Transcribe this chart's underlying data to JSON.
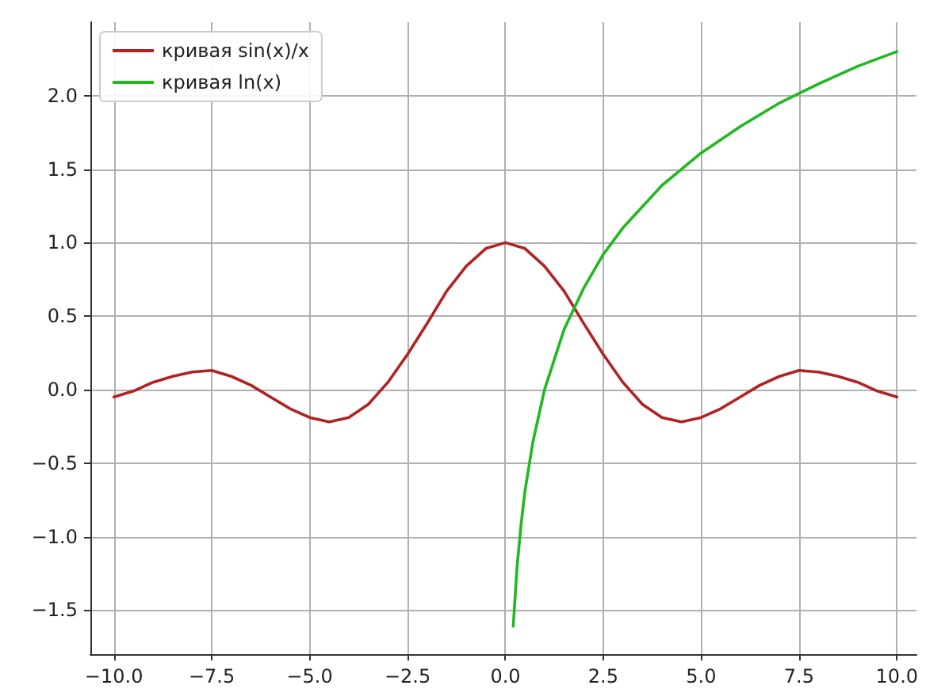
{
  "chart_data": {
    "type": "line",
    "series": [
      {
        "name": "кривая sin(x)/x",
        "color": "#b22222",
        "x": [
          -10,
          -9.5,
          -9,
          -8.5,
          -8,
          -7.5,
          -7,
          -6.5,
          -6,
          -5.5,
          -5,
          -4.5,
          -4,
          -3.5,
          -3,
          -2.5,
          -2,
          -1.5,
          -1,
          -0.5,
          0,
          0.5,
          1,
          1.5,
          2,
          2.5,
          3,
          3.5,
          4,
          4.5,
          5,
          5.5,
          6,
          6.5,
          7,
          7.5,
          8,
          8.5,
          9,
          9.5,
          10
        ],
        "values": [
          -0.05,
          -0.01,
          0.05,
          0.09,
          0.12,
          0.13,
          0.09,
          0.03,
          -0.05,
          -0.13,
          -0.19,
          -0.22,
          -0.19,
          -0.1,
          0.05,
          0.24,
          0.45,
          0.67,
          0.84,
          0.96,
          1.0,
          0.96,
          0.84,
          0.67,
          0.45,
          0.24,
          0.05,
          -0.1,
          -0.19,
          -0.22,
          -0.19,
          -0.13,
          -0.05,
          0.03,
          0.09,
          0.13,
          0.12,
          0.09,
          0.05,
          -0.01,
          -0.05
        ]
      },
      {
        "name": "кривая ln(x)",
        "color": "#22b822",
        "x": [
          0.2,
          0.3,
          0.4,
          0.5,
          0.7,
          1,
          1.5,
          2,
          2.5,
          3,
          4,
          5,
          6,
          7,
          8,
          9,
          10
        ],
        "values": [
          -1.61,
          -1.2,
          -0.92,
          -0.69,
          -0.36,
          0,
          0.41,
          0.69,
          0.92,
          1.1,
          1.39,
          1.61,
          1.79,
          1.95,
          2.08,
          2.2,
          2.3
        ]
      }
    ],
    "xlim": [
      -10.6,
      10.5
    ],
    "xticks": [
      {
        "value": -10,
        "label": "−10.0"
      },
      {
        "value": -7.5,
        "label": "−7.5"
      },
      {
        "value": -5,
        "label": "−5.0"
      },
      {
        "value": -2.5,
        "label": "−2.5"
      },
      {
        "value": 0,
        "label": "0.0"
      },
      {
        "value": 2.5,
        "label": "2.5"
      },
      {
        "value": 5,
        "label": "5.0"
      },
      {
        "value": 7.5,
        "label": "7.5"
      },
      {
        "value": 10,
        "label": "10.0"
      }
    ],
    "ylim": [
      -1.8,
      2.5
    ],
    "yticks": [
      {
        "value": -1.5,
        "label": "−1.5"
      },
      {
        "value": -1,
        "label": "−1.0"
      },
      {
        "value": -0.5,
        "label": "−0.5"
      },
      {
        "value": 0,
        "label": "0.0"
      },
      {
        "value": 0.5,
        "label": "0.5"
      },
      {
        "value": 1,
        "label": "1.0"
      },
      {
        "value": 1.5,
        "label": "1.5"
      },
      {
        "value": 2,
        "label": "2.0"
      }
    ],
    "grid": true,
    "legend": "top left"
  }
}
